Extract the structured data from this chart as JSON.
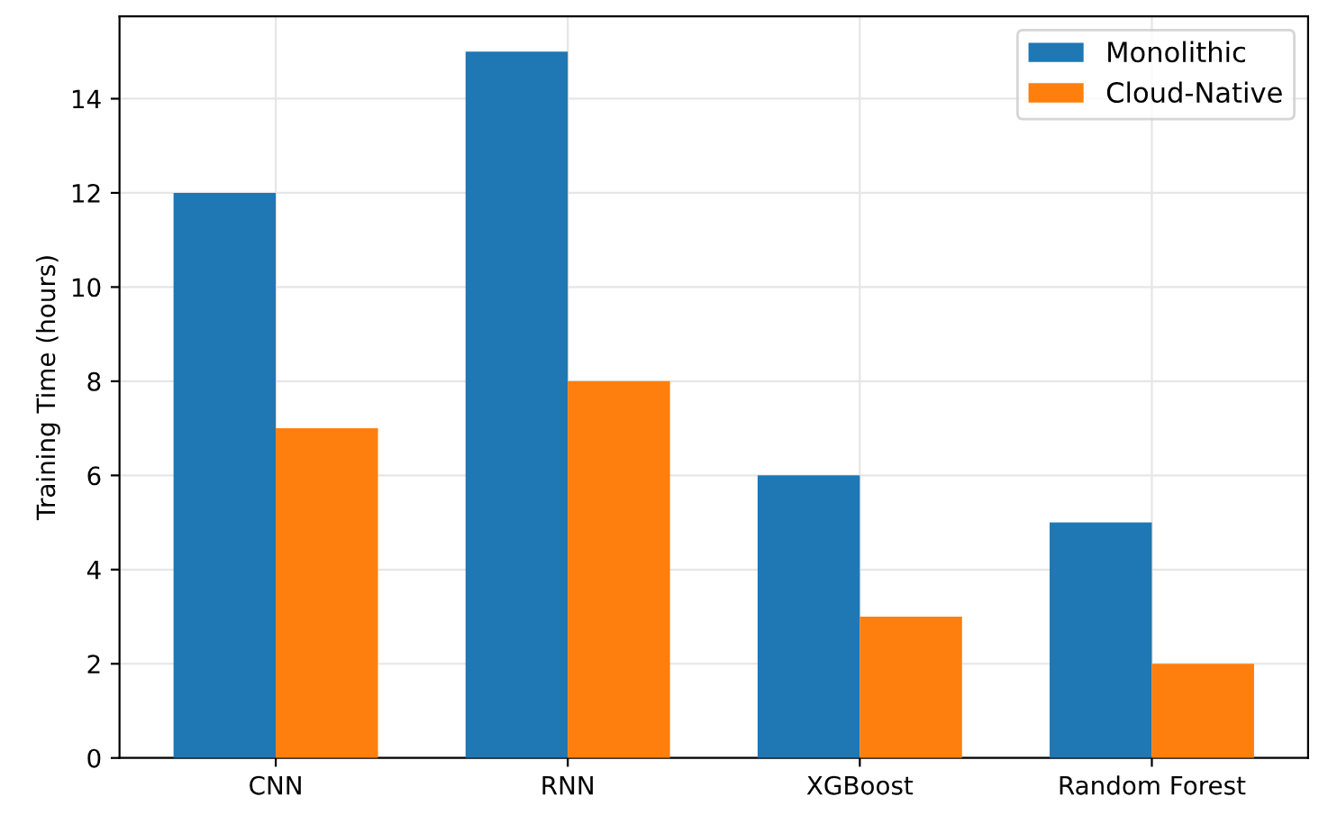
{
  "chart_data": {
    "type": "bar",
    "ylabel": "Training Time (hours)",
    "categories": [
      "CNN",
      "RNN",
      "XGBoost",
      "Random Forest"
    ],
    "series": [
      {
        "name": "Monolithic",
        "color": "#1f77b4",
        "values": [
          12,
          15,
          6,
          5
        ]
      },
      {
        "name": "Cloud-Native",
        "color": "#ff7f0e",
        "values": [
          7,
          8,
          3,
          2
        ]
      }
    ],
    "ylim": [
      0,
      15.75
    ],
    "yticks": [
      0,
      2,
      4,
      6,
      8,
      10,
      12,
      14
    ],
    "grid": true,
    "legend": "upper right"
  }
}
